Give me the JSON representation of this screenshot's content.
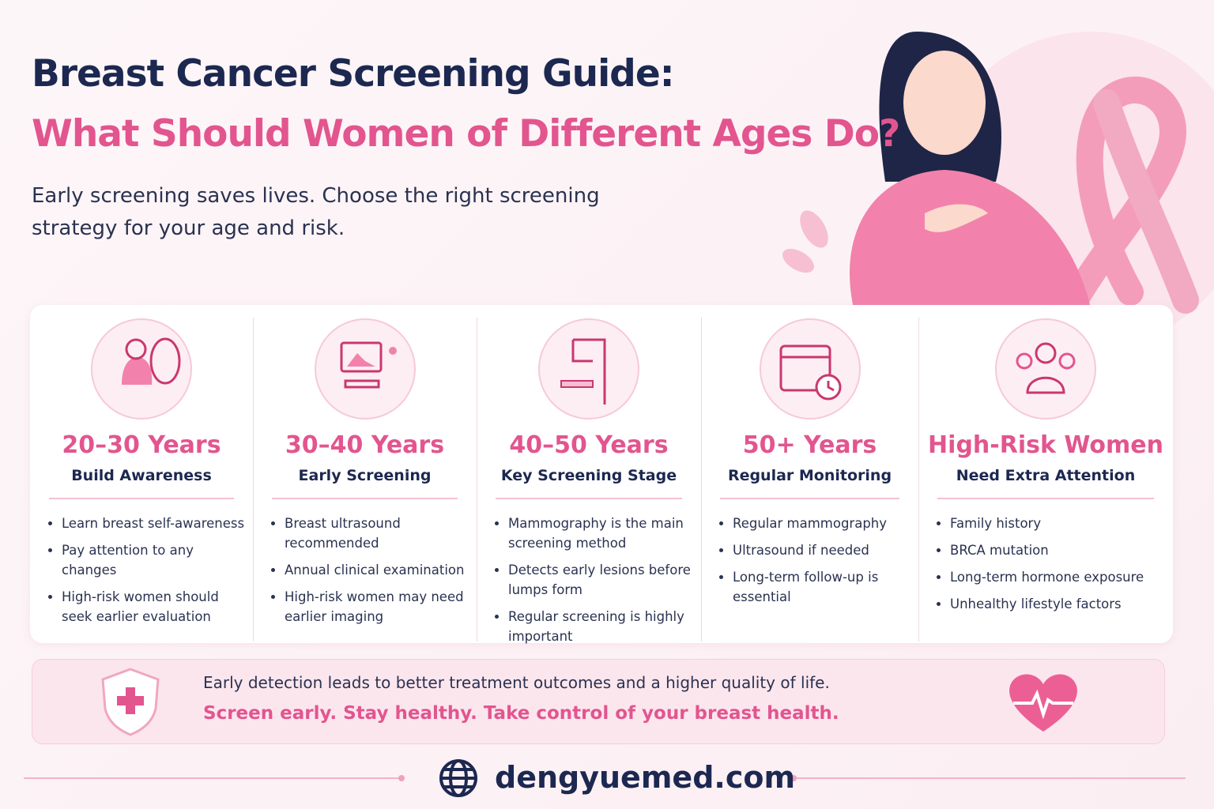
{
  "header": {
    "title": "Breast Cancer Screening Guide:",
    "subtitle": "What Should Women of Different Ages Do?",
    "intro": "Early screening saves lives. Choose the right screening strategy for your age and risk."
  },
  "columns": [
    {
      "heading": "20–30 Years",
      "subheading": "Build Awareness",
      "items": [
        "Learn breast self-awareness",
        "Pay attention to any changes",
        "High-risk women should seek earlier evaluation"
      ]
    },
    {
      "heading": "30–40 Years",
      "subheading": "Early Screening",
      "items": [
        "Breast ultrasound recommended",
        "Annual clinical examination",
        "High-risk women may need earlier imaging"
      ]
    },
    {
      "heading": "40–50 Years",
      "subheading": "Key Screening Stage",
      "items": [
        "Mammography is the main screening method",
        "Detects early lesions before lumps form",
        "Regular screening is highly important"
      ]
    },
    {
      "heading": "50+ Years",
      "subheading": "Regular Monitoring",
      "items": [
        "Regular mammography",
        "Ultrasound if needed",
        "Long-term follow-up is essential"
      ]
    },
    {
      "heading": "High-Risk Women",
      "subheading": "Need Extra Attention",
      "items": [
        "Family history",
        "BRCA mutation",
        "Long-term hormone exposure",
        "Unhealthy lifestyle factors"
      ]
    }
  ],
  "banner": {
    "line1": "Early detection leads to better treatment outcomes and a higher quality of life.",
    "line2": "Screen early. Stay healthy. Take control of your breast health."
  },
  "footer": {
    "website": "dengyuemed.com"
  }
}
